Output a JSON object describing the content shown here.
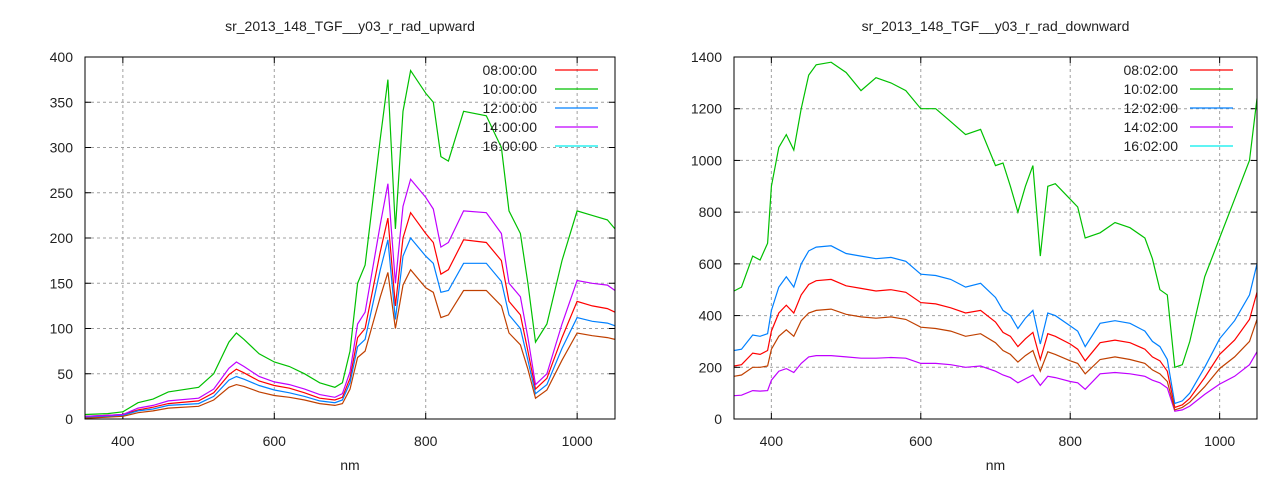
{
  "chart_data": [
    {
      "type": "line",
      "title": "sr_2013_148_TGF__y03_r_rad_upward",
      "xlabel": "nm",
      "ylabel": "",
      "xlim": [
        350,
        1050
      ],
      "ylim": [
        0,
        400
      ],
      "xticks": [
        400,
        600,
        800,
        1000
      ],
      "yticks": [
        0,
        50,
        100,
        150,
        200,
        250,
        300,
        350,
        400
      ],
      "grid": true,
      "legend": "top-right",
      "x": [
        350,
        380,
        400,
        420,
        440,
        460,
        500,
        520,
        540,
        550,
        560,
        580,
        600,
        620,
        640,
        660,
        680,
        690,
        700,
        710,
        720,
        740,
        750,
        760,
        770,
        780,
        800,
        810,
        820,
        830,
        850,
        880,
        900,
        910,
        925,
        935,
        945,
        960,
        980,
        1000,
        1020,
        1040,
        1050
      ],
      "series": [
        {
          "name": "08:00:00",
          "legend_color": "#ff0000",
          "color": "#ff0000",
          "values": [
            3,
            4,
            5,
            10,
            13,
            17,
            20,
            29,
            49,
            55,
            51,
            42,
            37,
            34,
            29,
            23,
            21,
            24,
            45,
            90,
            100,
            185,
            222,
            125,
            200,
            228,
            205,
            195,
            160,
            165,
            198,
            195,
            175,
            130,
            115,
            75,
            33,
            45,
            90,
            130,
            125,
            122,
            118
          ]
        },
        {
          "name": "10:00:00",
          "legend_color": "#00c000",
          "color": "#00c000",
          "values": [
            5,
            6,
            8,
            18,
            22,
            30,
            35,
            50,
            85,
            95,
            88,
            72,
            63,
            58,
            50,
            40,
            35,
            40,
            75,
            150,
            170,
            310,
            375,
            210,
            340,
            385,
            360,
            350,
            290,
            285,
            340,
            335,
            300,
            230,
            205,
            150,
            85,
            105,
            175,
            230,
            225,
            220,
            210
          ]
        },
        {
          "name": "12:00:00",
          "legend_color": "#0080ff",
          "color": "#0080ff",
          "values": [
            2,
            3,
            4,
            9,
            11,
            15,
            17,
            25,
            43,
            47,
            44,
            37,
            32,
            29,
            25,
            20,
            18,
            21,
            40,
            80,
            88,
            165,
            198,
            110,
            180,
            200,
            180,
            172,
            140,
            142,
            172,
            172,
            152,
            115,
            100,
            65,
            28,
            38,
            78,
            112,
            108,
            106,
            103
          ]
        },
        {
          "name": "14:00:00",
          "legend_color": "#c000ff",
          "color": "#c000ff",
          "values": [
            3,
            4,
            5,
            12,
            15,
            20,
            23,
            33,
            56,
            63,
            58,
            47,
            41,
            38,
            33,
            27,
            24,
            28,
            52,
            105,
            118,
            215,
            260,
            150,
            235,
            265,
            245,
            232,
            190,
            195,
            230,
            228,
            205,
            150,
            135,
            90,
            38,
            50,
            105,
            153,
            150,
            148,
            142
          ]
        },
        {
          "name": "16:00:00",
          "legend_color": "#00eeee",
          "color": "#c04000",
          "values": [
            1,
            2,
            3,
            7,
            9,
            12,
            14,
            21,
            35,
            38,
            36,
            30,
            26,
            24,
            21,
            17,
            15,
            17,
            33,
            68,
            75,
            135,
            162,
            100,
            148,
            165,
            145,
            140,
            112,
            115,
            142,
            142,
            125,
            95,
            82,
            55,
            23,
            32,
            65,
            95,
            92,
            90,
            88
          ]
        }
      ]
    },
    {
      "type": "line",
      "title": "sr_2013_148_TGF__y03_r_rad_downward",
      "xlabel": "nm",
      "ylabel": "",
      "xlim": [
        350,
        1050
      ],
      "ylim": [
        0,
        1400
      ],
      "xticks": [
        400,
        600,
        800,
        1000
      ],
      "yticks": [
        0,
        200,
        400,
        600,
        800,
        1000,
        1200,
        1400
      ],
      "grid": true,
      "legend": "top-right",
      "x": [
        350,
        360,
        375,
        385,
        395,
        400,
        410,
        420,
        430,
        440,
        450,
        460,
        480,
        500,
        520,
        540,
        560,
        580,
        600,
        620,
        640,
        660,
        680,
        700,
        710,
        720,
        730,
        740,
        750,
        760,
        770,
        780,
        800,
        810,
        820,
        840,
        860,
        880,
        900,
        910,
        920,
        930,
        940,
        950,
        960,
        980,
        1000,
        1020,
        1040,
        1050
      ],
      "series": [
        {
          "name": "08:02:00",
          "legend_color": "#ff0000",
          "color": "#ff0000",
          "values": [
            205,
            210,
            255,
            250,
            265,
            340,
            410,
            440,
            410,
            480,
            520,
            535,
            540,
            515,
            505,
            495,
            500,
            490,
            450,
            445,
            430,
            410,
            420,
            375,
            335,
            320,
            280,
            310,
            335,
            230,
            330,
            320,
            290,
            270,
            225,
            295,
            305,
            295,
            270,
            240,
            225,
            185,
            45,
            55,
            80,
            160,
            250,
            305,
            385,
            490
          ]
        },
        {
          "name": "10:02:00",
          "legend_color": "#00c000",
          "color": "#00c000",
          "values": [
            495,
            510,
            630,
            615,
            680,
            900,
            1050,
            1100,
            1040,
            1200,
            1330,
            1370,
            1380,
            1340,
            1270,
            1320,
            1300,
            1270,
            1200,
            1200,
            1150,
            1100,
            1120,
            980,
            990,
            900,
            800,
            900,
            980,
            630,
            900,
            910,
            850,
            820,
            700,
            720,
            760,
            740,
            700,
            620,
            500,
            480,
            200,
            210,
            300,
            550,
            700,
            850,
            1000,
            1240
          ]
        },
        {
          "name": "12:02:00",
          "legend_color": "#0080ff",
          "color": "#0080ff",
          "values": [
            265,
            270,
            325,
            320,
            330,
            420,
            510,
            550,
            510,
            600,
            650,
            665,
            670,
            640,
            630,
            620,
            625,
            610,
            560,
            555,
            540,
            510,
            525,
            470,
            420,
            400,
            350,
            390,
            420,
            290,
            410,
            400,
            360,
            340,
            280,
            370,
            380,
            370,
            340,
            300,
            280,
            230,
            60,
            70,
            100,
            200,
            310,
            380,
            480,
            600
          ]
        },
        {
          "name": "14:02:00",
          "legend_color": "#c000ff",
          "color": "#c000ff",
          "values": [
            90,
            92,
            110,
            108,
            110,
            150,
            185,
            195,
            180,
            215,
            240,
            245,
            245,
            240,
            235,
            235,
            238,
            235,
            215,
            215,
            210,
            200,
            205,
            185,
            170,
            160,
            140,
            155,
            170,
            130,
            165,
            160,
            145,
            140,
            115,
            175,
            180,
            175,
            165,
            150,
            140,
            120,
            30,
            35,
            50,
            95,
            135,
            165,
            210,
            260
          ]
        },
        {
          "name": "16:02:00",
          "legend_color": "#00eeee",
          "color": "#c04000",
          "values": [
            165,
            170,
            200,
            200,
            205,
            270,
            320,
            345,
            320,
            380,
            410,
            420,
            425,
            405,
            395,
            390,
            395,
            385,
            355,
            350,
            340,
            320,
            330,
            295,
            265,
            250,
            220,
            245,
            265,
            185,
            260,
            250,
            225,
            215,
            175,
            230,
            240,
            230,
            215,
            190,
            175,
            145,
            35,
            45,
            65,
            125,
            195,
            240,
            300,
            385
          ]
        }
      ]
    }
  ]
}
